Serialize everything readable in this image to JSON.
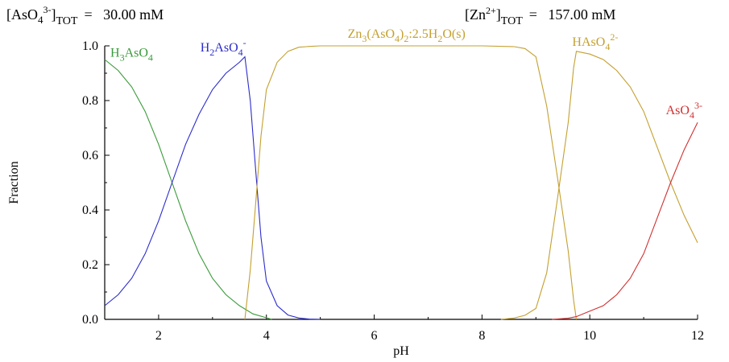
{
  "chart_data": {
    "type": "line",
    "title": "",
    "header": {
      "left": {
        "prefix": "[AsO",
        "sub": "4",
        "sup": "3-",
        "close": "]",
        "tot": "TOT",
        "value": "=   30.00 mM"
      },
      "right": {
        "prefix": "[Zn",
        "sup": "2+",
        "close": "]",
        "tot": "TOT",
        "value": "=   157.00 mM"
      }
    },
    "xlabel": "pH",
    "ylabel": "Fraction",
    "xlim": [
      1,
      12
    ],
    "ylim": [
      0,
      1
    ],
    "xticks": [
      "2",
      "4",
      "6",
      "8",
      "10",
      "12"
    ],
    "xtick_values": [
      2,
      4,
      6,
      8,
      10,
      12
    ],
    "yticks": [
      "0.0",
      "0.2",
      "0.4",
      "0.6",
      "0.8",
      "1.0"
    ],
    "ytick_values": [
      0,
      0.2,
      0.4,
      0.6,
      0.8,
      1.0
    ],
    "grid": false,
    "series": [
      {
        "key": "h3aso4",
        "color": "#3a9a3a",
        "label": {
          "parts": [
            [
              "H",
              "n"
            ],
            [
              "3",
              "b"
            ],
            [
              "AsO",
              "n"
            ],
            [
              "4",
              "b"
            ]
          ],
          "at": [
            1.5,
            0.96
          ]
        },
        "x": [
          1.0,
          1.25,
          1.5,
          1.75,
          2.0,
          2.25,
          2.5,
          2.75,
          3.0,
          3.25,
          3.5,
          3.75,
          4.0,
          4.1
        ],
        "y": [
          0.95,
          0.91,
          0.85,
          0.76,
          0.64,
          0.5,
          0.36,
          0.24,
          0.15,
          0.09,
          0.05,
          0.02,
          0.006,
          0.0
        ]
      },
      {
        "key": "h2aso4",
        "color": "#2c2ccc",
        "label": {
          "parts": [
            [
              "H",
              "n"
            ],
            [
              "2",
              "b"
            ],
            [
              "AsO",
              "n"
            ],
            [
              "4",
              "b"
            ],
            [
              "-",
              "p"
            ]
          ],
          "at": [
            3.2,
            0.98
          ]
        },
        "x": [
          1.0,
          1.25,
          1.5,
          1.75,
          2.0,
          2.25,
          2.5,
          2.75,
          3.0,
          3.25,
          3.5,
          3.6,
          3.7,
          3.8,
          3.9,
          4.0,
          4.2,
          4.4,
          4.6,
          4.8,
          5.0
        ],
        "y": [
          0.05,
          0.09,
          0.15,
          0.24,
          0.36,
          0.5,
          0.64,
          0.75,
          0.84,
          0.9,
          0.94,
          0.96,
          0.8,
          0.55,
          0.3,
          0.14,
          0.05,
          0.016,
          0.005,
          0.001,
          0.0
        ]
      },
      {
        "key": "solid",
        "color": "#c4a030",
        "label": {
          "parts": [
            [
              "Zn",
              "n"
            ],
            [
              "3",
              "b"
            ],
            [
              "(AsO",
              "n"
            ],
            [
              "4",
              "b"
            ],
            [
              ")",
              "n"
            ],
            [
              "2",
              "b"
            ],
            [
              ":2.5H",
              "n"
            ],
            [
              "2",
              "b"
            ],
            [
              "O(s)",
              "n"
            ]
          ],
          "at": [
            6.6,
            1.03
          ]
        },
        "x": [
          3.6,
          3.7,
          3.8,
          3.9,
          4.0,
          4.2,
          4.4,
          4.6,
          4.8,
          5.0,
          5.5,
          6.0,
          7.0,
          8.0,
          8.6,
          8.8,
          9.0,
          9.2,
          9.4,
          9.6,
          9.7,
          9.75
        ],
        "y": [
          0.0,
          0.18,
          0.42,
          0.67,
          0.84,
          0.94,
          0.98,
          0.995,
          0.998,
          1.0,
          1.0,
          1.0,
          1.0,
          1.0,
          0.997,
          0.99,
          0.96,
          0.78,
          0.52,
          0.25,
          0.07,
          0.0
        ]
      },
      {
        "key": "haso4",
        "color": "#c4a030",
        "label": {
          "parts": [
            [
              "HAsO",
              "n"
            ],
            [
              "4",
              "b"
            ],
            [
              "2-",
              "p"
            ]
          ],
          "at": [
            10.1,
            1.0
          ]
        },
        "x": [
          8.35,
          8.6,
          8.8,
          9.0,
          9.2,
          9.4,
          9.6,
          9.7,
          9.75,
          10.0,
          10.25,
          10.5,
          10.75,
          11.0,
          11.25,
          11.5,
          11.75,
          12.0
        ],
        "y": [
          0.0,
          0.005,
          0.015,
          0.04,
          0.17,
          0.44,
          0.72,
          0.92,
          0.98,
          0.97,
          0.95,
          0.91,
          0.85,
          0.76,
          0.63,
          0.5,
          0.38,
          0.28
        ]
      },
      {
        "key": "aso4",
        "color": "#d03030",
        "label": {
          "parts": [
            [
              "AsO",
              "n"
            ],
            [
              "4",
              "b"
            ],
            [
              "3-",
              "p"
            ]
          ],
          "at": [
            11.75,
            0.75
          ]
        },
        "x": [
          9.3,
          9.6,
          9.75,
          10.0,
          10.25,
          10.5,
          10.75,
          11.0,
          11.25,
          11.5,
          11.75,
          12.0
        ],
        "y": [
          0.0,
          0.004,
          0.01,
          0.03,
          0.05,
          0.09,
          0.15,
          0.24,
          0.37,
          0.5,
          0.62,
          0.72
        ]
      }
    ]
  }
}
